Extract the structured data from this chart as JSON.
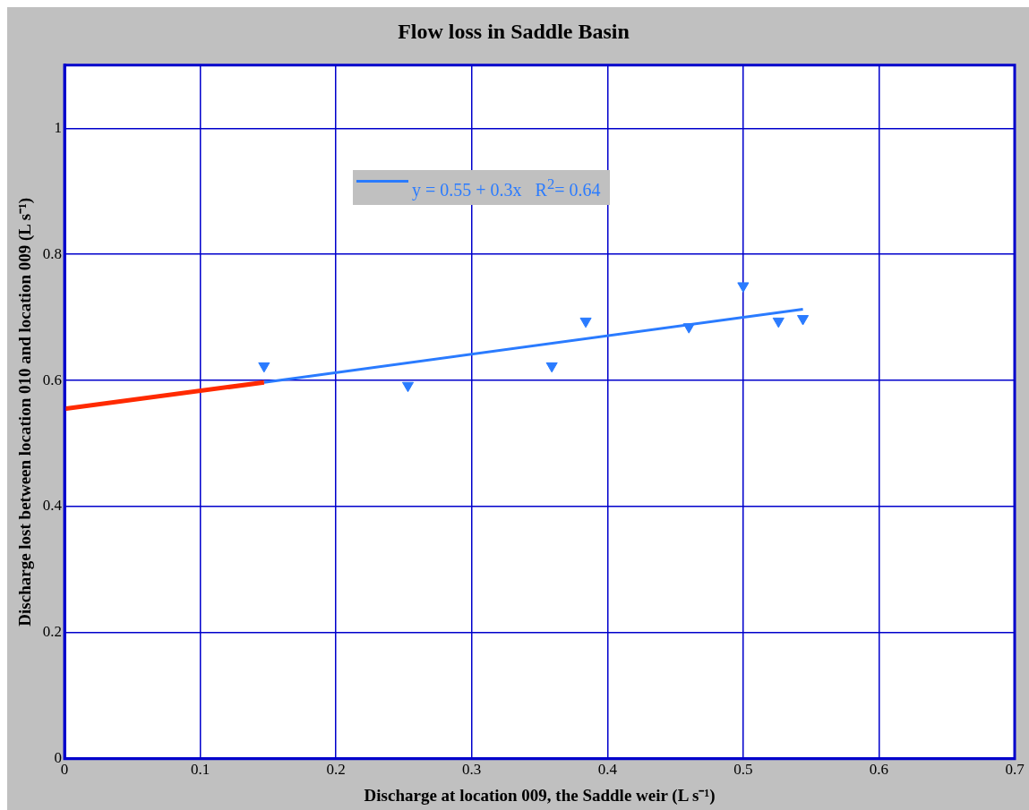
{
  "chart_data": {
    "type": "scatter",
    "title": "Flow loss in Saddle Basin",
    "xlabel": "Discharge at location 009, the Saddle weir (L s⁻¹)",
    "ylabel": "Discharge lost between location 010 and location 009 (L s⁻¹)",
    "series": [
      {
        "color": "#2a7bff",
        "marker": "triangle",
        "x": [
          0.147,
          0.253,
          0.359,
          0.384,
          0.46,
          0.5,
          0.526,
          0.544
        ],
        "values": [
          0.623,
          0.592,
          0.623,
          0.694,
          0.685,
          0.75,
          0.694,
          0.698
        ]
      },
      {
        "type": "line",
        "color": "#ff2a00",
        "x": [
          0,
          0.147
        ],
        "values": [
          0.555,
          0.597
        ]
      },
      {
        "type": "line",
        "name": "y = 0.55 + 0.3x   R$^{2}$= 0.64",
        "color": "#2a7bff",
        "x": [
          0.147,
          0.544
        ],
        "values": [
          0.597,
          0.713
        ]
      }
    ],
    "xlim": [
      0,
      0.7
    ],
    "xticks": [
      0,
      0.1,
      0.2,
      0.3,
      0.4,
      0.5,
      0.6,
      0.7
    ],
    "ylim": [
      0,
      1.1
    ],
    "yticks": [
      0,
      0.2,
      0.4,
      0.6,
      0.8,
      1
    ],
    "grid": true,
    "legend": "top"
  }
}
